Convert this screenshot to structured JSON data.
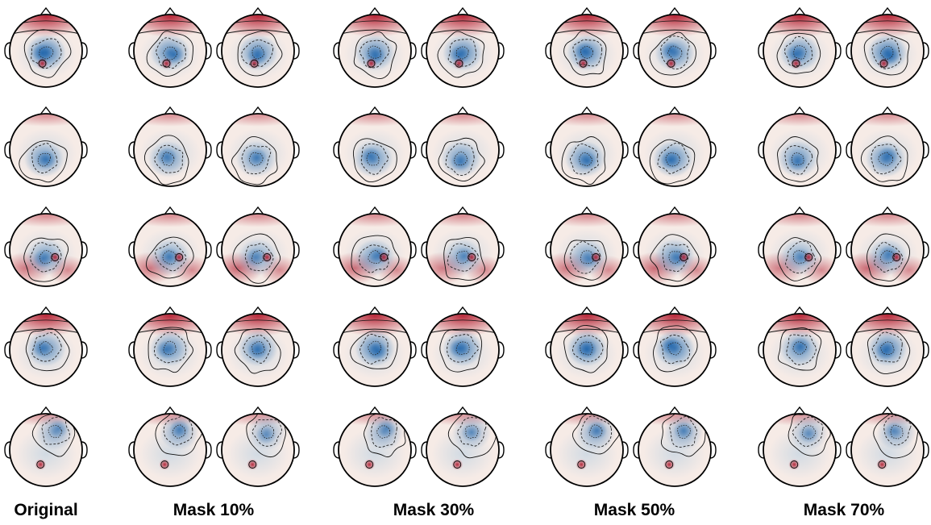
{
  "figure": {
    "labels": [
      "Original",
      "Mask 10%",
      "Mask 30%",
      "Mask 50%",
      "Mask 70%"
    ],
    "groups": [
      {
        "label_index": 0,
        "maps": 1
      },
      {
        "label_index": 1,
        "maps": 2
      },
      {
        "label_index": 2,
        "maps": 2
      },
      {
        "label_index": 3,
        "maps": 2
      },
      {
        "label_index": 4,
        "maps": 2
      }
    ],
    "rows": 5,
    "colormap": {
      "negative": "#2166ac",
      "neutral": "#f7f7f7",
      "positive": "#b2182b"
    },
    "row_patterns": [
      {
        "name": "frontal-positive-central-negative",
        "front_red": 0.95,
        "blue_center": [
          0.0,
          -0.05
        ],
        "blue_strength": 0.85,
        "red_spot": [
          -0.1,
          -0.35
        ]
      },
      {
        "name": "central-negative-focal",
        "front_red": 0.15,
        "blue_center": [
          -0.05,
          -0.25
        ],
        "blue_strength": 0.7,
        "red_spot": null
      },
      {
        "name": "posterior-positive-central-negative",
        "front_red": 0.2,
        "back_red": 0.7,
        "blue_center": [
          0.0,
          -0.2
        ],
        "blue_strength": 0.6,
        "red_spot": [
          0.25,
          -0.2
        ]
      },
      {
        "name": "frontal-positive-broad-negative",
        "front_red": 0.95,
        "blue_center": [
          0.0,
          0.05
        ],
        "blue_strength": 0.8,
        "red_spot": null
      },
      {
        "name": "mixed-focal",
        "front_red": 0.1,
        "blue_center": [
          0.25,
          0.5
        ],
        "blue_strength": 0.55,
        "red_spot": [
          -0.15,
          -0.4
        ]
      }
    ]
  }
}
